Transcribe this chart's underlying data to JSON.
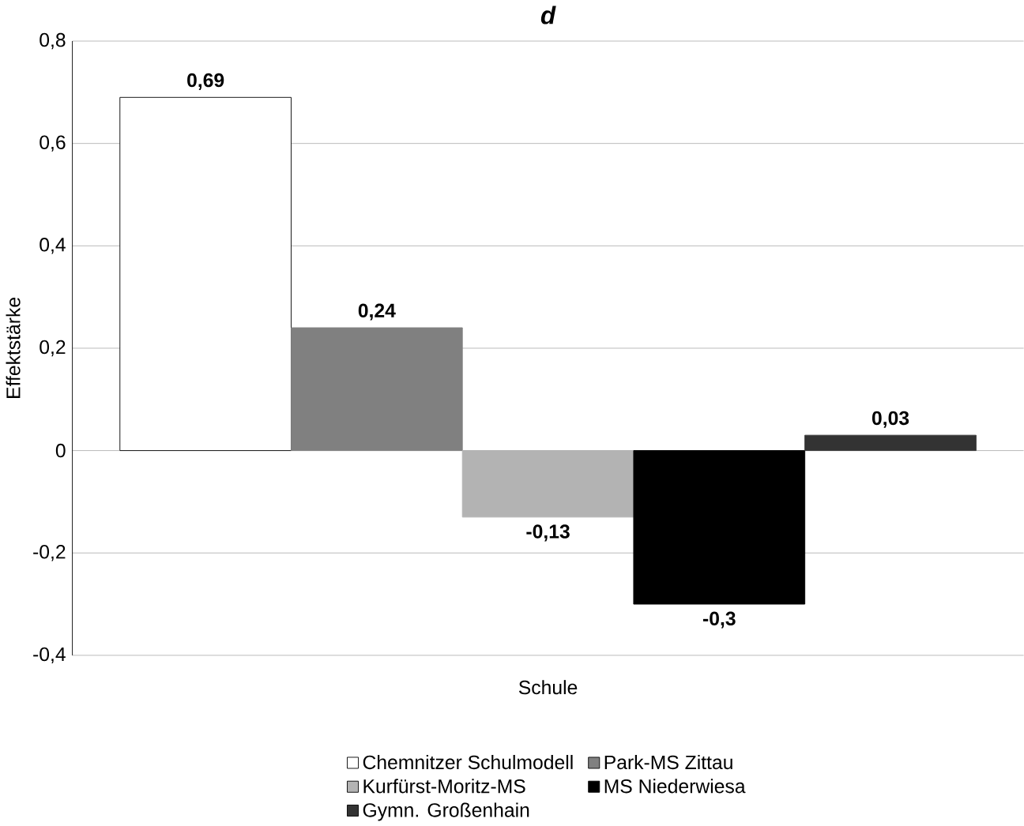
{
  "chart_data": {
    "type": "bar",
    "title": "d",
    "xlabel": "Schule",
    "ylabel": "Effektstärke",
    "categories": [
      null
    ],
    "series": [
      {
        "name": "Chemnitzer Schulmodell",
        "color": "#ffffff",
        "values": [
          0.69
        ],
        "value_labels": [
          "0,69"
        ]
      },
      {
        "name": "Park-MS Zittau",
        "color": "#808080",
        "values": [
          0.24
        ],
        "value_labels": [
          "0,24"
        ]
      },
      {
        "name": "Kurfürst-Moritz-MS",
        "color": "#b3b3b3",
        "values": [
          -0.13
        ],
        "value_labels": [
          "-0,13"
        ]
      },
      {
        "name": "MS Niederwiesa",
        "color": "#000000",
        "values": [
          -0.3
        ],
        "value_labels": [
          "-0,3"
        ]
      },
      {
        "name": "Gymn. Großenhain",
        "color": "#333333",
        "values": [
          0.03
        ],
        "value_labels": [
          "0,03"
        ]
      }
    ],
    "ylim": [
      -0.4,
      0.8
    ],
    "yticks": [
      {
        "value": -0.4,
        "label": "-0,4"
      },
      {
        "value": -0.2,
        "label": "-0,2"
      },
      0,
      {
        "value": 0.2,
        "label": "0,2"
      },
      {
        "value": 0.4,
        "label": "0,4"
      },
      {
        "value": 0.6,
        "label": "0,6"
      },
      {
        "value": 0.8,
        "label": "0,8"
      }
    ],
    "grid": "y",
    "legend": "bottom",
    "tick_labels": "y"
  }
}
